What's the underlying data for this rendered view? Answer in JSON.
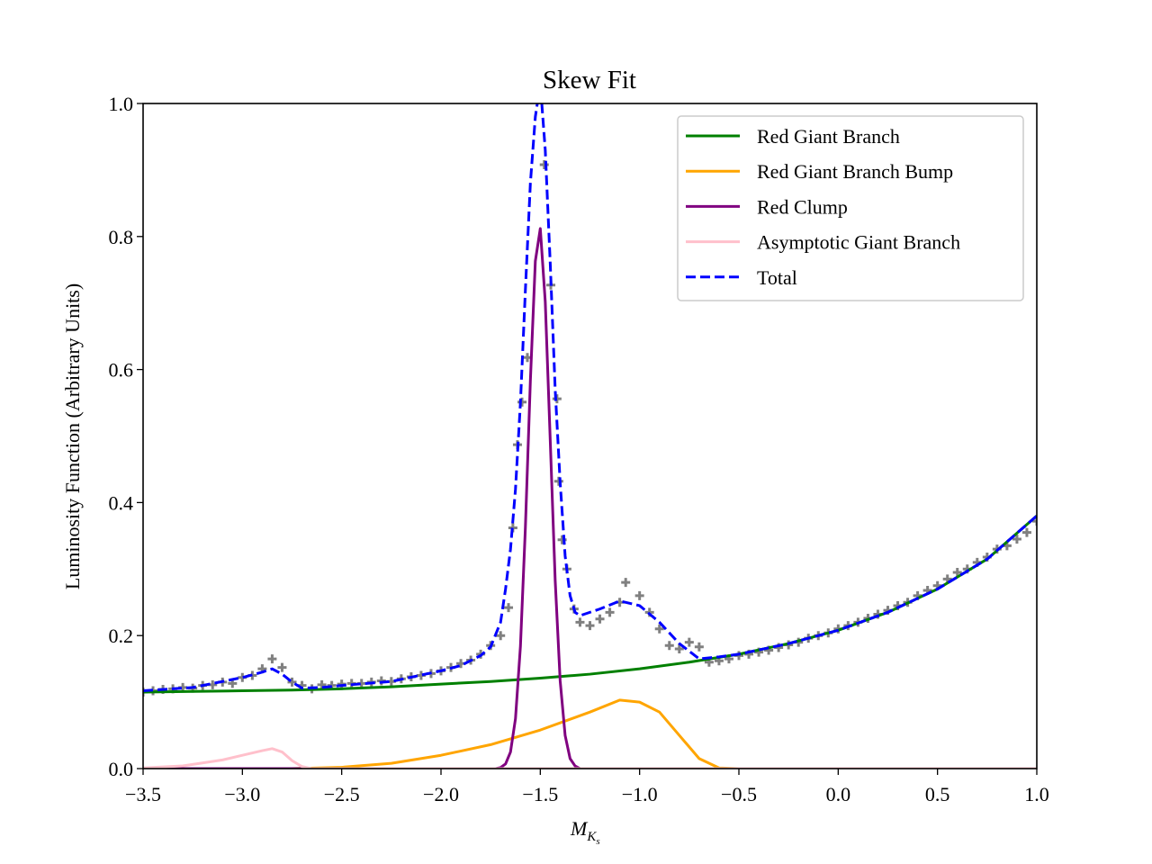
{
  "chart_data": {
    "type": "line",
    "title": "Skew Fit",
    "xlabel": {
      "main": "M",
      "sub": "K",
      "subsub": "s"
    },
    "ylabel": "Luminosity Function (Arbitrary Units)",
    "xlim": [
      -3.5,
      1.0
    ],
    "ylim": [
      0.0,
      1.0
    ],
    "xticks": [
      {
        "value": -3.5,
        "label": "−3.5"
      },
      {
        "value": -3.0,
        "label": "−3.0"
      },
      {
        "value": -2.5,
        "label": "−2.5"
      },
      {
        "value": -2.0,
        "label": "−2.0"
      },
      {
        "value": -1.5,
        "label": "−1.5"
      },
      {
        "value": -1.0,
        "label": "−1.0"
      },
      {
        "value": -0.5,
        "label": "−0.5"
      },
      {
        "value": 0,
        "label": "0.0"
      },
      0.5,
      {
        "value": 1.0,
        "label": "1.0"
      }
    ],
    "yticks": [
      {
        "value": 0,
        "label": "0.0"
      },
      0.2,
      0.4,
      0.6,
      0.8,
      {
        "value": 1.0,
        "label": "1.0"
      }
    ],
    "legend": "upper right",
    "points": {
      "color": "#555555",
      "x": [
        -3.5,
        -3.45,
        -3.4,
        -3.35,
        -3.3,
        -3.25,
        -3.2,
        -3.15,
        -3.1,
        -3.05,
        -3.0,
        -2.95,
        -2.9,
        -2.85,
        -2.8,
        -2.75,
        -2.7,
        -2.65,
        -2.6,
        -2.55,
        -2.5,
        -2.45,
        -2.4,
        -2.35,
        -2.3,
        -2.25,
        -2.2,
        -2.15,
        -2.1,
        -2.05,
        -2.0,
        -1.95,
        -1.9,
        -1.85,
        -1.8,
        -1.75,
        -1.7,
        -1.66,
        -1.638,
        -1.615,
        -1.592,
        -1.565,
        -1.48,
        -1.447,
        -1.416,
        -1.407,
        -1.39,
        -1.366,
        -1.33,
        -1.3,
        -1.25,
        -1.2,
        -1.15,
        -1.1,
        -1.07,
        -1.0,
        -0.95,
        -0.9,
        -0.85,
        -0.8,
        -0.75,
        -0.7,
        -0.65,
        -0.6,
        -0.55,
        -0.5,
        -0.45,
        -0.4,
        -0.35,
        -0.3,
        -0.25,
        -0.2,
        -0.15,
        -0.1,
        -0.05,
        0,
        0.05,
        0.1,
        0.15,
        0.2,
        0.25,
        0.3,
        0.35,
        0.4,
        0.45,
        0.5,
        0.55,
        0.6,
        0.65,
        0.7,
        0.75,
        0.8,
        0.85,
        0.9,
        0.95,
        1.0
      ],
      "values": [
        0.115,
        0.117,
        0.119,
        0.12,
        0.122,
        0.121,
        0.125,
        0.126,
        0.13,
        0.128,
        0.137,
        0.14,
        0.15,
        0.165,
        0.152,
        0.13,
        0.125,
        0.12,
        0.126,
        0.125,
        0.127,
        0.128,
        0.128,
        0.13,
        0.132,
        0.131,
        0.135,
        0.138,
        0.14,
        0.143,
        0.147,
        0.152,
        0.158,
        0.163,
        0.172,
        0.185,
        0.2,
        0.242,
        0.362,
        0.487,
        0.551,
        0.618,
        0.908,
        0.727,
        0.556,
        0.432,
        0.344,
        0.3,
        0.24,
        0.22,
        0.215,
        0.225,
        0.235,
        0.25,
        0.28,
        0.26,
        0.235,
        0.21,
        0.185,
        0.18,
        0.19,
        0.183,
        0.16,
        0.162,
        0.165,
        0.17,
        0.172,
        0.175,
        0.178,
        0.182,
        0.186,
        0.19,
        0.196,
        0.2,
        0.204,
        0.21,
        0.215,
        0.22,
        0.226,
        0.232,
        0.238,
        0.245,
        0.25,
        0.26,
        0.268,
        0.275,
        0.285,
        0.295,
        0.3,
        0.31,
        0.318,
        0.33,
        0.335,
        0.345,
        0.355,
        0.372
      ]
    },
    "series": [
      {
        "name": "Red Giant Branch",
        "color": "#008000",
        "dash": false,
        "x": [
          -3.5,
          -3.25,
          -3.0,
          -2.75,
          -2.5,
          -2.25,
          -2.0,
          -1.75,
          -1.5,
          -1.25,
          -1.0,
          -0.75,
          -0.5,
          -0.25,
          0,
          0.25,
          0.5,
          0.75,
          1.0
        ],
        "values": [
          0.115,
          0.116,
          0.117,
          0.118,
          0.12,
          0.123,
          0.127,
          0.131,
          0.136,
          0.142,
          0.15,
          0.16,
          0.172,
          0.188,
          0.208,
          0.235,
          0.27,
          0.315,
          0.38
        ]
      },
      {
        "name": "Red Giant Branch Bump",
        "color": "#ffa500",
        "dash": false,
        "x": [
          -3.5,
          -3.0,
          -2.75,
          -2.5,
          -2.25,
          -2.0,
          -1.75,
          -1.5,
          -1.25,
          -1.1,
          -1.0,
          -0.9,
          -0.8,
          -0.7,
          -0.6,
          -0.5,
          1.0
        ],
        "values": [
          0,
          0,
          0,
          0.002,
          0.008,
          0.02,
          0.036,
          0.058,
          0.085,
          0.103,
          0.1,
          0.085,
          0.05,
          0.015,
          0.001,
          0,
          0
        ]
      },
      {
        "name": "Red Clump",
        "color": "#800080",
        "dash": false,
        "x": [
          -3.5,
          -1.8,
          -1.75,
          -1.725,
          -1.7,
          -1.675,
          -1.65,
          -1.625,
          -1.6,
          -1.575,
          -1.55,
          -1.525,
          -1.5,
          -1.475,
          -1.45,
          -1.425,
          -1.4,
          -1.375,
          -1.35,
          -1.325,
          -1.3,
          1.0
        ],
        "values": [
          0,
          0,
          0,
          0,
          0.0015,
          0.007,
          0.025,
          0.075,
          0.184,
          0.363,
          0.583,
          0.763,
          0.812,
          0.702,
          0.494,
          0.283,
          0.132,
          0.05,
          0.015,
          0.004,
          0,
          0
        ]
      },
      {
        "name": "Asymptotic Giant Branch",
        "color": "#ffc0cb",
        "dash": false,
        "x": [
          -3.5,
          -3.3,
          -3.1,
          -3.0,
          -2.9,
          -2.85,
          -2.8,
          -2.75,
          -2.7,
          -2.65,
          1.0
        ],
        "values": [
          0.001,
          0.004,
          0.013,
          0.02,
          0.027,
          0.03,
          0.025,
          0.012,
          0.003,
          0,
          0
        ]
      },
      {
        "name": "Total",
        "color": "#0000ff",
        "dash": true,
        "x": [
          -3.5,
          -3.25,
          -3.0,
          -2.9,
          -2.85,
          -2.8,
          -2.75,
          -2.7,
          -2.6,
          -2.5,
          -2.25,
          -2.0,
          -1.9,
          -1.8,
          -1.75,
          -1.7,
          -1.675,
          -1.65,
          -1.625,
          -1.6,
          -1.575,
          -1.55,
          -1.525,
          -1.5,
          -1.475,
          -1.45,
          -1.425,
          -1.4,
          -1.375,
          -1.35,
          -1.325,
          -1.3,
          -1.2,
          -1.1,
          -1.0,
          -0.9,
          -0.8,
          -0.7,
          -0.6,
          -0.5,
          -0.25,
          0,
          0.25,
          0.5,
          0.75,
          1.0
        ],
        "values": [
          0.117,
          0.122,
          0.137,
          0.145,
          0.15,
          0.142,
          0.13,
          0.121,
          0.122,
          0.125,
          0.131,
          0.147,
          0.155,
          0.17,
          0.183,
          0.22,
          0.27,
          0.33,
          0.42,
          0.55,
          0.72,
          0.88,
          0.98,
          1.03,
          0.93,
          0.76,
          0.57,
          0.43,
          0.32,
          0.26,
          0.235,
          0.23,
          0.24,
          0.252,
          0.245,
          0.22,
          0.188,
          0.165,
          0.168,
          0.172,
          0.188,
          0.208,
          0.235,
          0.27,
          0.315,
          0.38
        ]
      }
    ]
  }
}
